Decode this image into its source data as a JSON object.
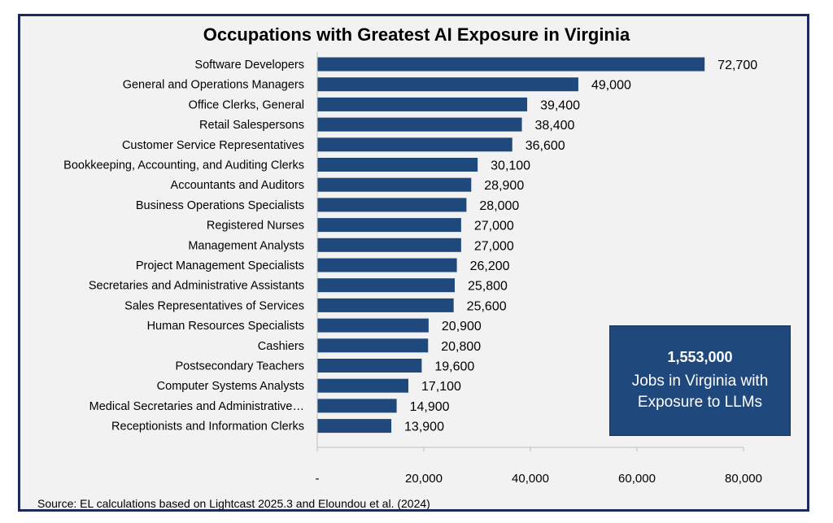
{
  "chart_data": {
    "type": "bar",
    "orientation": "horizontal",
    "title": "Occupations with Greatest AI Exposure in Virginia",
    "categories": [
      "Software Developers",
      "General and Operations Managers",
      "Office Clerks, General",
      "Retail Salespersons",
      "Customer Service Representatives",
      "Bookkeeping, Accounting, and Auditing Clerks",
      "Accountants and Auditors",
      "Business Operations Specialists",
      "Registered Nurses",
      "Management Analysts",
      "Project Management Specialists",
      "Secretaries and Administrative Assistants",
      "Sales Representatives of Services",
      "Human Resources Specialists",
      "Cashiers",
      "Postsecondary Teachers",
      "Computer Systems Analysts",
      "Medical Secretaries and Administrative…",
      "Receptionists and Information Clerks"
    ],
    "values": [
      72700,
      49000,
      39400,
      38400,
      36600,
      30100,
      28900,
      28000,
      27000,
      27000,
      26200,
      25800,
      25600,
      20900,
      20800,
      19600,
      17100,
      14900,
      13900
    ],
    "value_labels": [
      "72,700",
      "49,000",
      "39,400",
      "38,400",
      "36,600",
      "30,100",
      "28,900",
      "28,000",
      "27,000",
      "27,000",
      "26,200",
      "25,800",
      "25,600",
      "20,900",
      "20,800",
      "19,600",
      "17,100",
      "14,900",
      "13,900"
    ],
    "xlim": [
      0,
      80000
    ],
    "xticks": [
      0,
      20000,
      40000,
      60000,
      80000
    ],
    "xtick_labels": [
      "-",
      "20,000",
      "40,000",
      "60,000",
      "80,000"
    ],
    "xlabel": "",
    "ylabel": "",
    "grid": false,
    "legend": "none"
  },
  "callout": {
    "number": "1,553,000",
    "line1": "Jobs in Virginia with",
    "line2": "Exposure to LLMs"
  },
  "source": "Source: EL calculations based on Lightcast 2025.3 and Eloundou et al. (2024)",
  "colors": {
    "bar": "#1f497d",
    "frame": "#1d2b5c",
    "background": "#f2f2f2",
    "callout_bg": "#1f497d"
  }
}
